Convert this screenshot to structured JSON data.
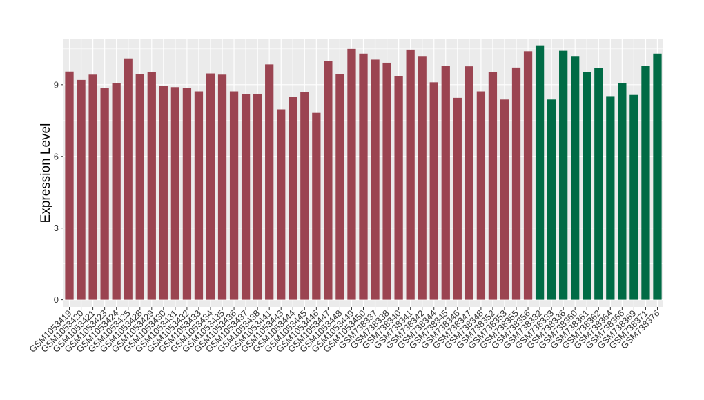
{
  "chart_data": {
    "type": "bar",
    "title": "",
    "xlabel": "",
    "ylabel": "Expression Level",
    "ylim": [
      -0.3,
      10.9
    ],
    "yticks": [
      0,
      3,
      6,
      9
    ],
    "grid": true,
    "legend": "none",
    "colors": {
      "group_1": "#9B4451",
      "group_2": "#006B45",
      "panel": "#EBEBEB",
      "gridline": "#FFFFFF"
    },
    "categories": [
      "GSM1053419",
      "GSM1053420",
      "GSM1053421",
      "GSM1053423",
      "GSM1053424",
      "GSM1053425",
      "GSM1053428",
      "GSM1053429",
      "GSM1053430",
      "GSM1053431",
      "GSM1053432",
      "GSM1053433",
      "GSM1053434",
      "GSM1053435",
      "GSM1053436",
      "GSM1053437",
      "GSM1053438",
      "GSM1053441",
      "GSM1053443",
      "GSM1053444",
      "GSM1053445",
      "GSM1053446",
      "GSM1053447",
      "GSM1053448",
      "GSM1053449",
      "GSM1053450",
      "GSM738337",
      "GSM738338",
      "GSM738340",
      "GSM738341",
      "GSM738342",
      "GSM738344",
      "GSM738345",
      "GSM738346",
      "GSM738347",
      "GSM738348",
      "GSM738352",
      "GSM738353",
      "GSM738355",
      "GSM738356",
      "GSM738332",
      "GSM738333",
      "GSM738336",
      "GSM738360",
      "GSM738361",
      "GSM738362",
      "GSM738364",
      "GSM738366",
      "GSM738369",
      "GSM738371",
      "GSM738376"
    ],
    "values": [
      9.55,
      9.2,
      9.42,
      8.85,
      9.08,
      10.1,
      9.45,
      9.52,
      8.95,
      8.9,
      8.87,
      8.72,
      9.47,
      9.42,
      8.72,
      8.6,
      8.62,
      9.85,
      7.97,
      8.5,
      8.68,
      7.82,
      10.0,
      9.43,
      10.5,
      10.3,
      10.05,
      9.92,
      9.37,
      10.47,
      10.2,
      9.1,
      9.8,
      8.45,
      9.77,
      8.72,
      9.53,
      8.38,
      9.72,
      10.4,
      10.65,
      8.38,
      10.42,
      10.2,
      9.53,
      9.7,
      8.52,
      9.08,
      8.57,
      9.8,
      10.3
    ],
    "groups": [
      1,
      1,
      1,
      1,
      1,
      1,
      1,
      1,
      1,
      1,
      1,
      1,
      1,
      1,
      1,
      1,
      1,
      1,
      1,
      1,
      1,
      1,
      1,
      1,
      1,
      1,
      1,
      1,
      1,
      1,
      1,
      1,
      1,
      1,
      1,
      1,
      1,
      1,
      1,
      1,
      2,
      2,
      2,
      2,
      2,
      2,
      2,
      2,
      2,
      2,
      2
    ]
  }
}
